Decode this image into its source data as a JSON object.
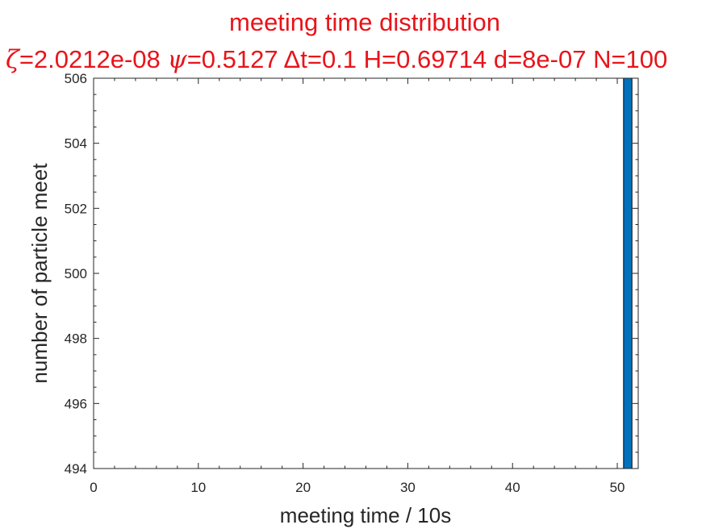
{
  "chart_data": {
    "type": "bar",
    "title": "meeting time distribution",
    "subtitle": "ζ=2.0212e-08 ψ=0.5127 Δt=0.1 H=0.69714 d=8e-07 N=100",
    "subtitle_parts": {
      "zeta_symbol": "ζ",
      "zeta_value": "=2.0212e-08 ",
      "psi_symbol": "ψ",
      "psi_value": "=0.5127 ",
      "rest": "Δt=0.1 H=0.69714 d=8e-07 N=100"
    },
    "xlabel": "meeting time / 10s",
    "ylabel": "number of particle meet",
    "xlim": [
      0,
      52
    ],
    "ylim": [
      494,
      506
    ],
    "xticks": [
      "0",
      "10",
      "20",
      "30",
      "40",
      "50"
    ],
    "yticks": [
      "494",
      "496",
      "498",
      "500",
      "502",
      "504",
      "506"
    ],
    "x": [
      51
    ],
    "values": [
      506
    ],
    "bar_width": 0.8,
    "bar_color": "#0072bd",
    "title_color": "#e8141a",
    "grid": false,
    "box": true
  }
}
